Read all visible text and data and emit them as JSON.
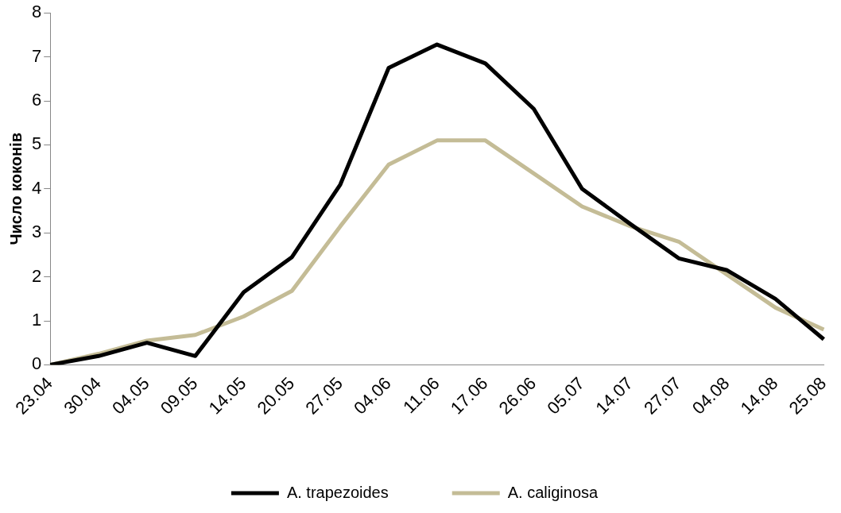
{
  "chart_data": {
    "type": "line",
    "ylabel": "Число коконів",
    "categories": [
      "23.04",
      "30.04",
      "04.05",
      "09.05",
      "14.05",
      "20.05",
      "27.05",
      "04.06",
      "11.06",
      "17.06",
      "26.06",
      "05.07",
      "14.07",
      "27.07",
      "04.08",
      "14.08",
      "25.08"
    ],
    "series": [
      {
        "name": "A. trapezoides",
        "color": "#000000",
        "values": [
          0,
          0.2,
          0.5,
          0.2,
          1.65,
          2.45,
          4.1,
          6.75,
          7.28,
          6.85,
          5.82,
          4.0,
          3.2,
          2.42,
          2.15,
          1.5,
          0.58
        ]
      },
      {
        "name": "A. caliginosa",
        "color": "#c4bc96",
        "values": [
          0,
          0.25,
          0.55,
          0.68,
          1.1,
          1.68,
          3.15,
          4.55,
          5.1,
          5.1,
          4.35,
          3.6,
          3.15,
          2.8,
          2.05,
          1.3,
          0.8
        ]
      }
    ],
    "ylim": [
      0,
      8
    ],
    "yticks": [
      0,
      1,
      2,
      3,
      4,
      5,
      6,
      7,
      8
    ],
    "grid": false,
    "legend": "bottom",
    "marker": "none",
    "line_style": "solid"
  }
}
